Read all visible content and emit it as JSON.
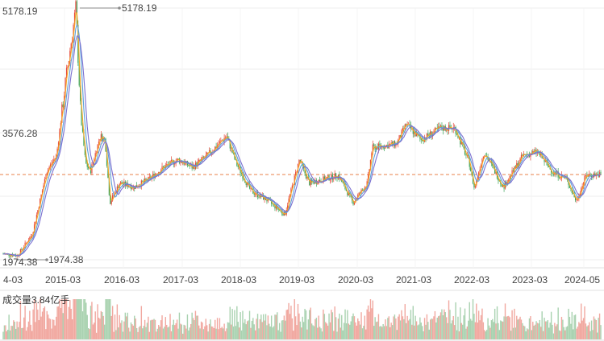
{
  "chart_data": {
    "type": "candlestick",
    "y_ticks": [
      "5178.19",
      "3576.28",
      "1974.38"
    ],
    "ylim": [
      1974.38,
      5178.19
    ],
    "reference_line": 3060,
    "x_ticks": [
      "4-03",
      "2015-03",
      "2016-03",
      "2017-03",
      "2018-03",
      "2019-03",
      "2020-03",
      "2021-03",
      "2022-03",
      "2023-03",
      "2024-05"
    ],
    "max_marker": "5178.19",
    "min_marker": "1974.38",
    "volume_label": "成交量3.84亿手",
    "price_path_monthly": [
      [
        "2014-03",
        2050
      ],
      [
        "2014-06",
        2030
      ],
      [
        "2014-09",
        2300
      ],
      [
        "2014-12",
        3100
      ],
      [
        "2015-02",
        3300
      ],
      [
        "2015-04",
        4300
      ],
      [
        "2015-06",
        5178.19
      ],
      [
        "2015-07",
        3800
      ],
      [
        "2015-08",
        3200
      ],
      [
        "2015-09",
        3100
      ],
      [
        "2015-11",
        3550
      ],
      [
        "2015-12",
        3500
      ],
      [
        "2016-01",
        2700
      ],
      [
        "2016-03",
        2950
      ],
      [
        "2016-06",
        2900
      ],
      [
        "2016-09",
        3000
      ],
      [
        "2016-12",
        3150
      ],
      [
        "2017-03",
        3250
      ],
      [
        "2017-06",
        3150
      ],
      [
        "2017-09",
        3300
      ],
      [
        "2018-01",
        3550
      ],
      [
        "2018-03",
        3200
      ],
      [
        "2018-06",
        2850
      ],
      [
        "2018-09",
        2750
      ],
      [
        "2019-01",
        2550
      ],
      [
        "2019-04",
        3250
      ],
      [
        "2019-06",
        2950
      ],
      [
        "2019-09",
        3000
      ],
      [
        "2019-12",
        3050
      ],
      [
        "2020-03",
        2700
      ],
      [
        "2020-06",
        2950
      ],
      [
        "2020-07",
        3400
      ],
      [
        "2020-12",
        3450
      ],
      [
        "2021-02",
        3700
      ],
      [
        "2021-05",
        3500
      ],
      [
        "2021-09",
        3650
      ],
      [
        "2021-12",
        3650
      ],
      [
        "2022-03",
        3200
      ],
      [
        "2022-04",
        2880
      ],
      [
        "2022-06",
        3350
      ],
      [
        "2022-10",
        2900
      ],
      [
        "2023-02",
        3300
      ],
      [
        "2023-05",
        3350
      ],
      [
        "2023-08",
        3100
      ],
      [
        "2023-11",
        3000
      ],
      [
        "2024-01",
        2720
      ],
      [
        "2024-03",
        3050
      ],
      [
        "2024-05",
        3060
      ]
    ],
    "colors": {
      "up": "#e64a3c",
      "down": "#3da55b",
      "ma5": "#f5a623",
      "ma10": "#7b6fd0",
      "ma20": "#5ca0d8",
      "reference": "#e8804a",
      "grid": "#eeeeee",
      "volume_up": "#f1a8a0",
      "volume_down": "#a9d2b0"
    }
  }
}
